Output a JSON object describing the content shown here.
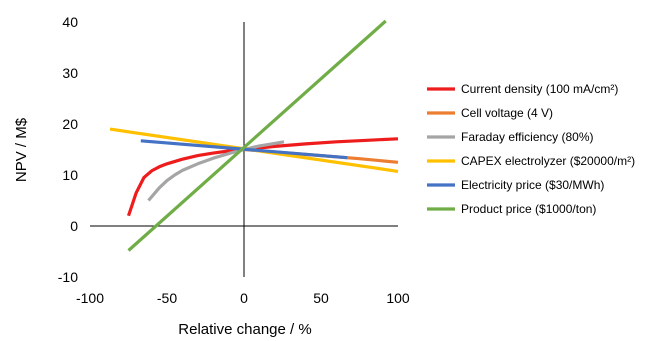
{
  "chart_data": {
    "type": "line",
    "xlabel": "Relative change / %",
    "ylabel": "NPV / M$",
    "xlim": [
      -100,
      100
    ],
    "ylim": [
      -10,
      40
    ],
    "xticks": [
      -100,
      -50,
      0,
      50,
      100
    ],
    "yticks": [
      -10,
      0,
      10,
      20,
      30,
      40
    ],
    "grid": false,
    "legend": "right",
    "series": [
      {
        "name": "Current density (100 mA/cm²)",
        "color": "#ee1c1c",
        "x": [
          -75,
          -70,
          -65,
          -60,
          -55,
          -50,
          -40,
          -30,
          -20,
          -10,
          0,
          20,
          40,
          60,
          80,
          100
        ],
        "y": [
          2,
          6.5,
          9.5,
          10.8,
          11.6,
          12.2,
          13.1,
          13.8,
          14.3,
          14.7,
          15,
          15.6,
          16.1,
          16.5,
          16.8,
          17.1
        ]
      },
      {
        "name": "Cell voltage (4 V)",
        "color": "#ed7d31",
        "x": [
          0,
          25,
          50,
          75,
          100
        ],
        "y": [
          15,
          14.4,
          13.8,
          13.2,
          12.5
        ]
      },
      {
        "name": "Faraday efficiency (80%)",
        "color": "#a5a5a5",
        "x": [
          -62,
          -55,
          -50,
          -45,
          -40,
          -30,
          -20,
          -10,
          0,
          10,
          20,
          26
        ],
        "y": [
          5,
          7.5,
          8.9,
          10,
          10.9,
          12.2,
          13.3,
          14.2,
          15,
          15.7,
          16.2,
          16.5
        ]
      },
      {
        "name": "CAPEX electrolyzer ($20000/m²)",
        "color": "#ffc000",
        "x": [
          -87,
          100
        ],
        "y": [
          19,
          10.7
        ]
      },
      {
        "name": "Electricity price ($30/MWh)",
        "color": "#4472c4",
        "x": [
          -67,
          67
        ],
        "y": [
          16.7,
          13.4
        ]
      },
      {
        "name": "Product price ($1000/ton)",
        "color": "#70ad47",
        "x": [
          -75,
          92
        ],
        "y": [
          -4.8,
          40.2
        ]
      }
    ]
  }
}
